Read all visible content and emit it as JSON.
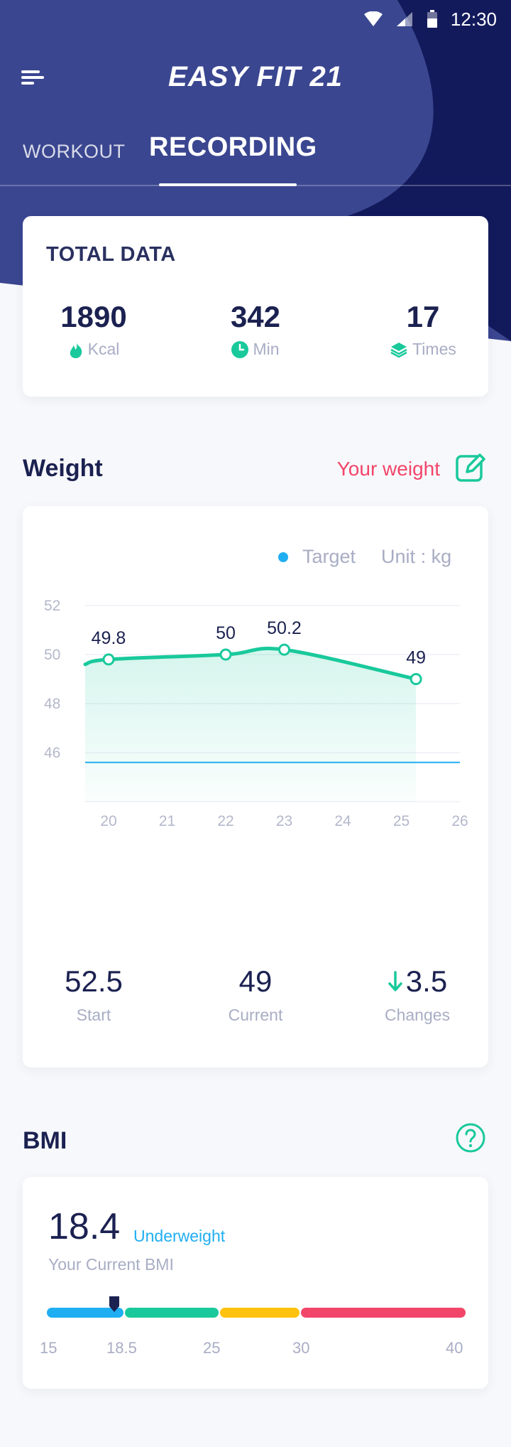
{
  "status_bar": {
    "time": "12:30",
    "icons": [
      "wifi-icon",
      "signal-icon",
      "battery-icon"
    ]
  },
  "app": {
    "title": "EASY FIT 21",
    "menu_icon": "hamburger-menu-icon"
  },
  "tabs": [
    {
      "label": "WORKOUT",
      "active": false
    },
    {
      "label": "RECORDING",
      "active": true
    }
  ],
  "total": {
    "title": "TOTAL DATA",
    "stats": [
      {
        "value": "1890",
        "unit": "Kcal",
        "icon": "flame-icon"
      },
      {
        "value": "342",
        "unit": "Min",
        "icon": "clock-icon"
      },
      {
        "value": "17",
        "unit": "Times",
        "icon": "layers-icon"
      }
    ]
  },
  "weight": {
    "title": "Weight",
    "link": "Your weight",
    "legend": "Target",
    "unit": "Unit : kg",
    "start": {
      "value": "52.5",
      "label": "Start"
    },
    "current": {
      "value": "49",
      "label": "Current"
    },
    "changes": {
      "value": "3.5",
      "label": "Changes"
    }
  },
  "chart_data": {
    "type": "line",
    "x": [
      20,
      21,
      22,
      23,
      24,
      25,
      26
    ],
    "yticks": [
      52,
      50,
      48,
      46
    ],
    "ylim": [
      44,
      52
    ],
    "xlim": [
      19.6,
      26
    ],
    "points": [
      {
        "x": 20,
        "y": 49.8,
        "label": "49.8"
      },
      {
        "x": 22,
        "y": 50,
        "label": "50"
      },
      {
        "x": 23,
        "y": 50.2,
        "label": "50.2"
      },
      {
        "x": 25.25,
        "y": 49,
        "label": "49"
      }
    ],
    "target": 45.6,
    "colors": {
      "line": "#19c99b",
      "target": "#20aef2"
    }
  },
  "bmi": {
    "title": "BMI",
    "value": "18.4",
    "status": "Underweight",
    "subtitle": "Your Current BMI",
    "ticks": [
      "15",
      "18.5",
      "25",
      "30",
      "40"
    ],
    "colors": [
      "#20aef2",
      "#19c99b",
      "#ffc20e",
      "#f2456a"
    ]
  }
}
